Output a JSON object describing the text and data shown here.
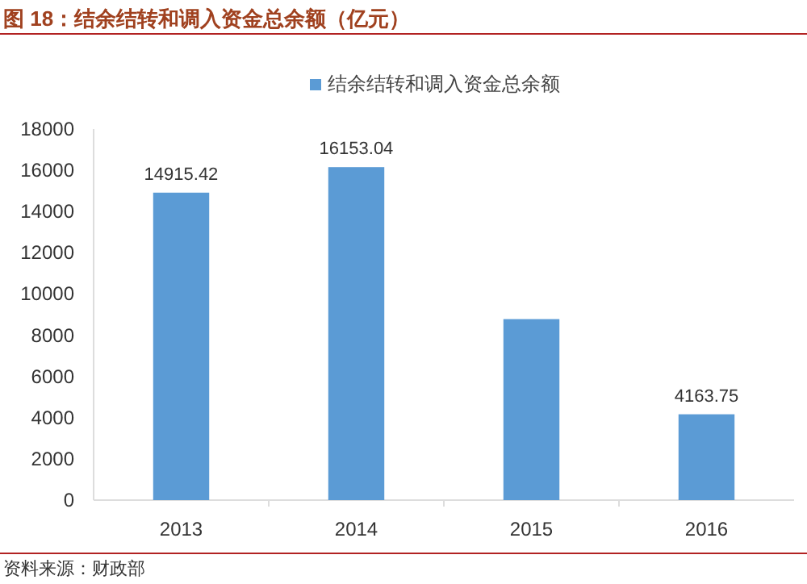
{
  "chart_data": {
    "type": "bar",
    "title": "图 18：结余结转和调入资金总余额（亿元）",
    "categories": [
      "2013",
      "2014",
      "2015",
      "2016"
    ],
    "series": [
      {
        "name": "结余结转和调入资金总余额",
        "color": "#5b9bd5",
        "values": [
          14915.42,
          16153.04,
          8780,
          4163.75
        ],
        "value_labels": [
          "14915.42",
          "16153.04",
          null,
          "4163.75"
        ]
      }
    ],
    "ylim": [
      0,
      18000
    ],
    "yticks": [
      0,
      2000,
      4000,
      6000,
      8000,
      10000,
      12000,
      14000,
      16000,
      18000
    ],
    "grid": false,
    "legend": "top",
    "annotations": [
      "资料来源：财政部"
    ]
  }
}
